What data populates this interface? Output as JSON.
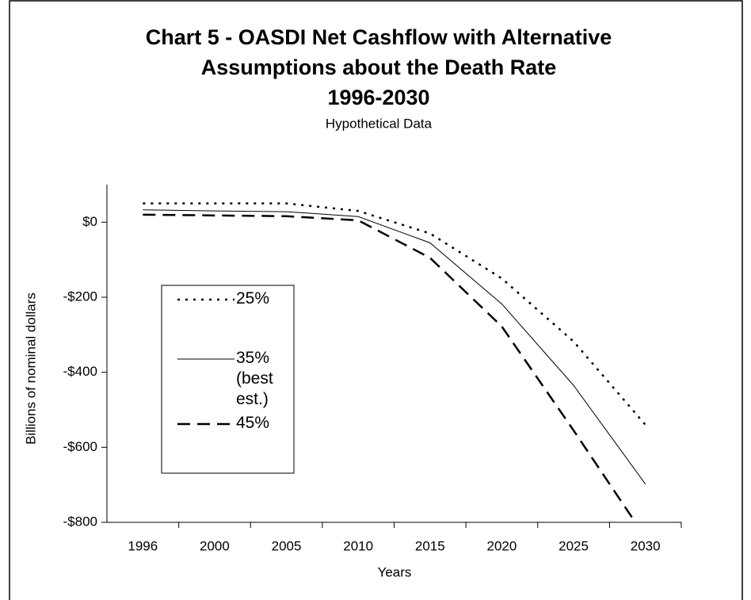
{
  "chart_data": {
    "type": "line",
    "title": [
      "Chart 5 - OASDI Net Cashflow with Alternative",
      "Assumptions about the Death Rate",
      "1996-2030"
    ],
    "subtitle": "Hypothetical Data",
    "x_label": "Years",
    "y_label": "Billions of nominal dollars",
    "categories": [
      "1996",
      "2000",
      "2005",
      "2010",
      "2015",
      "2020",
      "2025",
      "2030"
    ],
    "series": [
      {
        "name": "25%",
        "color": "#000000",
        "dash": "dotted",
        "values": [
          50,
          50,
          50,
          30,
          -30,
          -150,
          -318,
          -540
        ]
      },
      {
        "name": "35% (best est.)",
        "color": "#000000",
        "dash": "solid",
        "values": [
          33,
          30,
          28,
          15,
          -55,
          -218,
          -435,
          -698
        ]
      },
      {
        "name": "45%",
        "color": "#000000",
        "dash": "dashed",
        "values": [
          20,
          18,
          16,
          5,
          -95,
          -278,
          -555,
          -840
        ]
      }
    ],
    "ylim": [
      -800,
      100
    ],
    "yticks": [
      {
        "value": -800,
        "label": "-$800"
      },
      {
        "value": -600,
        "label": "-$600"
      },
      {
        "value": -400,
        "label": "-$400"
      },
      {
        "value": -200,
        "label": "-$200"
      },
      {
        "value": 0,
        "label": "$0"
      }
    ],
    "grid": false,
    "legend": "left"
  }
}
